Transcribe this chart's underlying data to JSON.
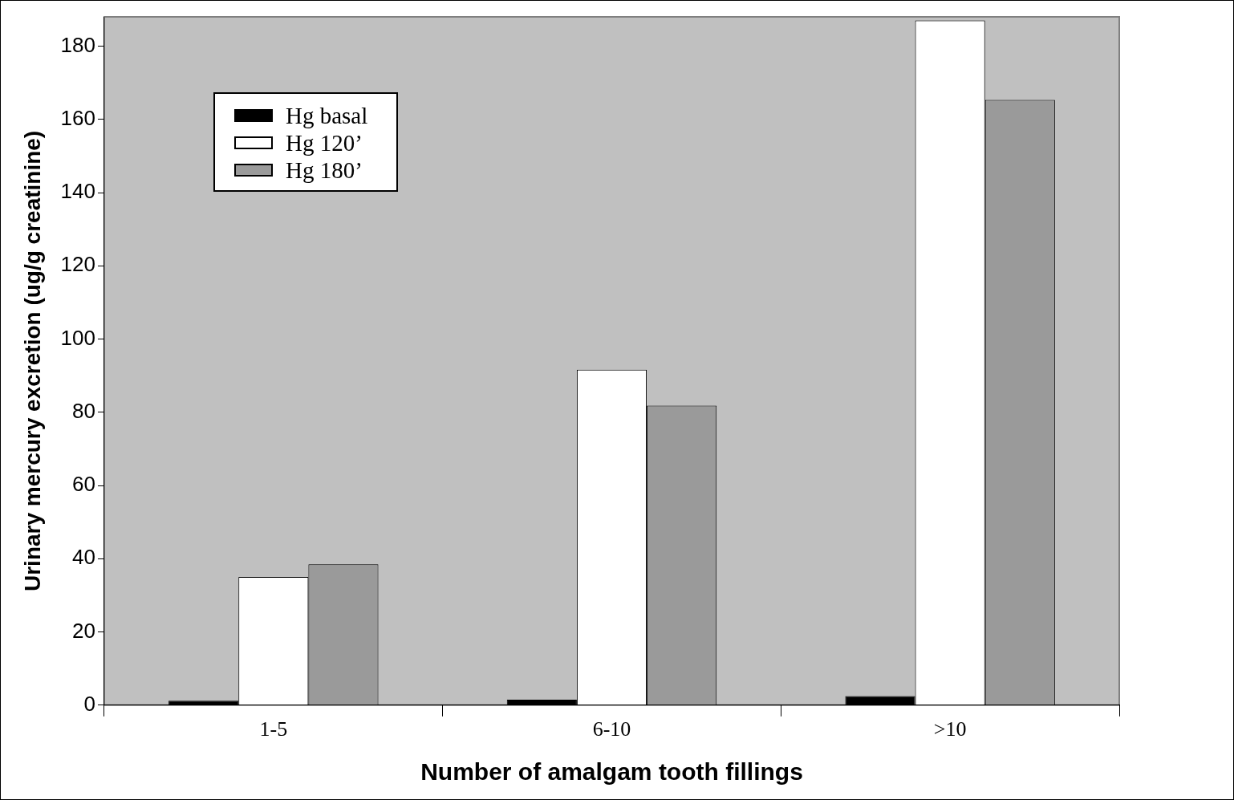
{
  "chart_data": {
    "type": "bar",
    "xlabel": "Number of amalgam tooth fillings",
    "ylabel": "Urinary mercury excretion (ug/g creatinine)",
    "categories": [
      "1-5",
      "6-10",
      ">10"
    ],
    "series": [
      {
        "name": "Hg basal",
        "color": "#000000",
        "values": [
          1.2,
          1.5,
          2.5
        ]
      },
      {
        "name": "Hg 120’",
        "color": "#ffffff",
        "values": [
          35,
          91.6,
          187
        ]
      },
      {
        "name": "Hg 180’",
        "color": "#9a9a9a",
        "values": [
          38.5,
          81.8,
          165.3
        ]
      }
    ],
    "ylim": [
      0,
      188
    ],
    "yticks": [
      0,
      20,
      40,
      60,
      80,
      100,
      120,
      140,
      160,
      180
    ],
    "grid": false,
    "legend": "top left"
  }
}
